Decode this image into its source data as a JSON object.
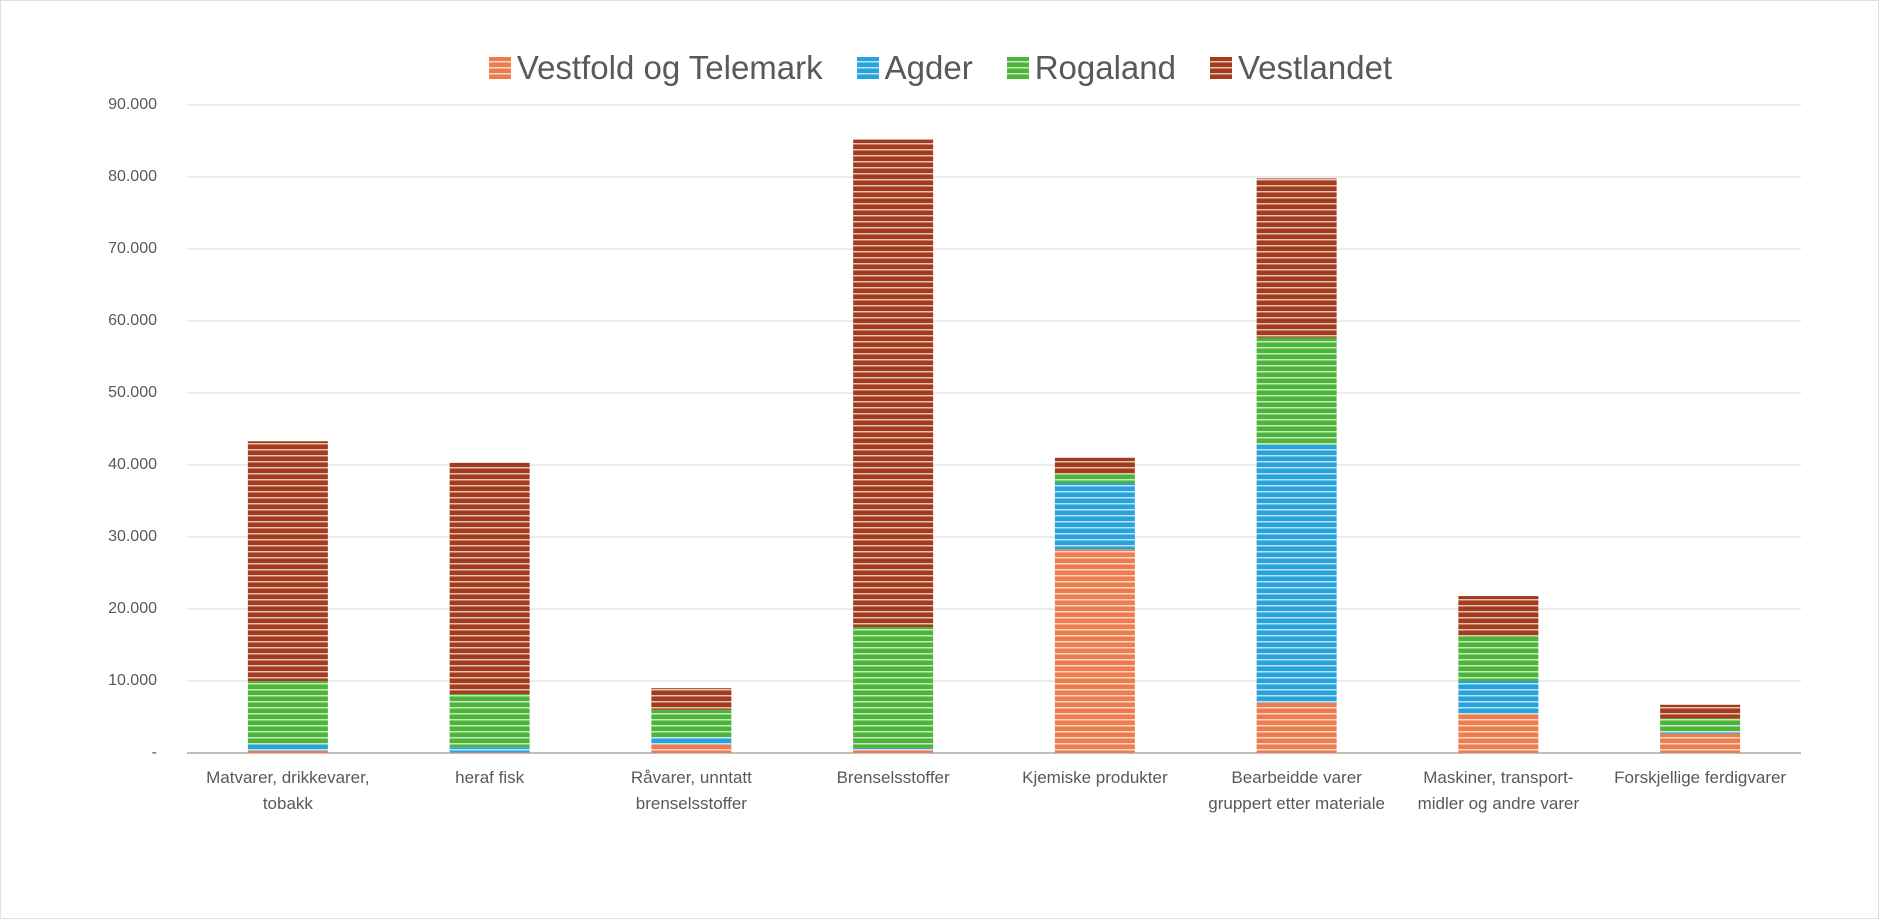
{
  "chart_data": {
    "type": "bar",
    "stacked": true,
    "categories": [
      "Matvarer, drikkevarer, tobakk",
      "heraf fisk",
      "Råvarer, unntatt brenselsstoffer",
      "Brenselsstoffer",
      "Kjemiske produkter",
      "Bearbeidde varer gruppert etter materiale",
      "Maskiner, transport-midler og andre varer",
      "Forskjellige ferdigvarer"
    ],
    "series": [
      {
        "name": "Vestfold og Telemark",
        "color": "#ed7d4f",
        "values": [
          300,
          100,
          1200,
          500,
          28300,
          7000,
          5500,
          2700
        ]
      },
      {
        "name": "Agder",
        "color": "#29a3dc",
        "values": [
          900,
          700,
          1000,
          200,
          9200,
          35800,
          4500,
          300
        ]
      },
      {
        "name": "Rogaland",
        "color": "#4db63a",
        "values": [
          8800,
          7400,
          3800,
          16800,
          1300,
          14900,
          6200,
          1800
        ]
      },
      {
        "name": "Vestlandet",
        "color": "#a33c1c",
        "values": [
          33300,
          32100,
          3000,
          67700,
          2200,
          22100,
          5600,
          1900
        ]
      }
    ],
    "ylim": [
      0,
      90000
    ],
    "yticks": [
      {
        "value": 0,
        "label": "-"
      },
      {
        "value": 10000,
        "label": "10.000"
      },
      {
        "value": 20000,
        "label": "20.000"
      },
      {
        "value": 30000,
        "label": "30.000"
      },
      {
        "value": 40000,
        "label": "40.000"
      },
      {
        "value": 50000,
        "label": "50.000"
      },
      {
        "value": 60000,
        "label": "60.000"
      },
      {
        "value": 70000,
        "label": "70.000"
      },
      {
        "value": 80000,
        "label": "80.000"
      },
      {
        "value": 90000,
        "label": "90.000"
      }
    ],
    "grid": true,
    "legend": "top"
  }
}
